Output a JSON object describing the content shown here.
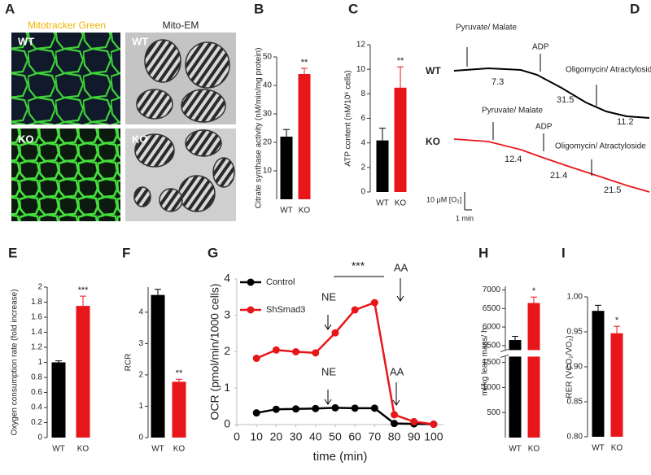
{
  "panel_a": {
    "label": "A",
    "col1": "Mitotracker Green",
    "col2": "Mito-EM",
    "wt1": "WT",
    "wt2": "WT",
    "ko1": "KO",
    "ko2": "KO"
  },
  "panel_d": {
    "label": "D",
    "wt": "WT",
    "ko": "KO",
    "wt_pm": "Pyruvate/ Malate",
    "wt_adp": "ADP",
    "wt_oa": "Oligomycin/ Atractyloside",
    "ko_pm": "Pyruvate/ Malate",
    "ko_adp": "ADP",
    "ko_oa": "Oligomycin/ Atractyloside",
    "wt_r1": "7.3",
    "wt_r2": "31.5",
    "wt_r3": "11.2",
    "ko_r1": "12.4",
    "ko_r2": "21.4",
    "ko_r3": "21.5",
    "scale_y": "10 µM [O₂]",
    "scale_x": "1 min"
  },
  "chart_data": [
    {
      "type": "bar",
      "label": "B",
      "ylabel": "Citrate synthase activity (nM/min/mg protein)",
      "categories": [
        "WT",
        "KO"
      ],
      "values": [
        22,
        44
      ],
      "errors": [
        2.5,
        2
      ],
      "colors": [
        "#000000",
        "#e8161b"
      ],
      "ylim": [
        0,
        50
      ],
      "yticks": [
        10,
        20,
        30,
        40,
        50
      ],
      "annotation": "**"
    },
    {
      "type": "bar",
      "label": "C",
      "ylabel": "ATP content (nM/10⁶ cells)",
      "categories": [
        "WT",
        "KO"
      ],
      "values": [
        4.2,
        8.5
      ],
      "errors": [
        1,
        1.7
      ],
      "colors": [
        "#000000",
        "#e8161b"
      ],
      "ylim": [
        0,
        12
      ],
      "yticks": [
        0,
        2,
        4,
        6,
        8,
        10,
        12
      ],
      "annotation": "**"
    },
    {
      "type": "bar",
      "label": "E",
      "ylabel": "Oxygen consumption rate (fold increase)",
      "categories": [
        "WT",
        "KO"
      ],
      "values": [
        1.0,
        1.75
      ],
      "errors": [
        0.02,
        0.13
      ],
      "colors": [
        "#000000",
        "#e8161b"
      ],
      "ylim": [
        0,
        2
      ],
      "yticks": [
        0,
        0.2,
        0.4,
        0.6,
        0.8,
        1,
        1.2,
        1.4,
        1.6,
        1.8,
        2
      ],
      "annotation": "***"
    },
    {
      "type": "bar",
      "label": "F",
      "ylabel": "RCR",
      "categories": [
        "WT",
        "KO"
      ],
      "values": [
        4.55,
        1.78
      ],
      "errors": [
        0.18,
        0.08
      ],
      "colors": [
        "#000000",
        "#e8161b"
      ],
      "ylim": [
        0,
        4.8
      ],
      "yticks": [
        0,
        1,
        2,
        3,
        4
      ],
      "annotation": "**"
    },
    {
      "type": "line",
      "label": "G",
      "xlabel": "time (min)",
      "ylabel": "OCR (pmol/min/1000 cells)",
      "x": [
        10,
        20,
        30,
        40,
        50,
        60,
        70,
        80,
        90,
        100
      ],
      "series": [
        {
          "name": "Control",
          "color": "#000000",
          "values": [
            0.32,
            0.42,
            0.43,
            0.44,
            0.46,
            0.45,
            0.45,
            0.03,
            0.02,
            0.01
          ]
        },
        {
          "name": "ShSmad3",
          "color": "#e8161b",
          "values": [
            1.82,
            2.05,
            2.0,
            1.97,
            2.52,
            3.15,
            3.35,
            0.27,
            0.08,
            0.01
          ]
        }
      ],
      "xlim": [
        0,
        105
      ],
      "xticks": [
        0,
        10,
        20,
        30,
        40,
        50,
        60,
        70,
        80,
        90,
        100
      ],
      "ylim": [
        0,
        4
      ],
      "yticks": [
        0,
        1,
        2,
        3,
        4
      ],
      "legend": "upper left",
      "annotations": [
        "NE",
        "NE",
        "AA",
        "AA",
        "***"
      ]
    },
    {
      "type": "bar",
      "label": "H",
      "ylabel": "ml/kg lean mass/ h",
      "categories": [
        "WT",
        "KO"
      ],
      "values": [
        5650,
        6650
      ],
      "errors": [
        100,
        160
      ],
      "colors": [
        "#000000",
        "#e8161b"
      ],
      "ylim": [
        0,
        7100
      ],
      "axis_break": [
        1600,
        5400
      ],
      "yticks": [
        500,
        1000,
        1500,
        5500,
        6000,
        6500,
        7000
      ],
      "annotation": "*"
    },
    {
      "type": "bar",
      "label": "I",
      "ylabel": "RER (VCO₂/VO₂)",
      "categories": [
        "WT",
        "KO"
      ],
      "values": [
        0.98,
        0.948
      ],
      "errors": [
        0.008,
        0.01
      ],
      "colors": [
        "#000000",
        "#e8161b"
      ],
      "ylim": [
        0.8,
        1.0
      ],
      "yticks": [
        {
          "value": 0.8,
          "label": "0.80"
        },
        {
          "value": 0.85,
          "label": "0.85"
        },
        {
          "value": 0.9,
          "label": "0.90"
        },
        {
          "value": 0.95,
          "label": "0.95"
        },
        {
          "value": 1.0,
          "label": "1.00"
        }
      ],
      "annotation": "*"
    }
  ]
}
